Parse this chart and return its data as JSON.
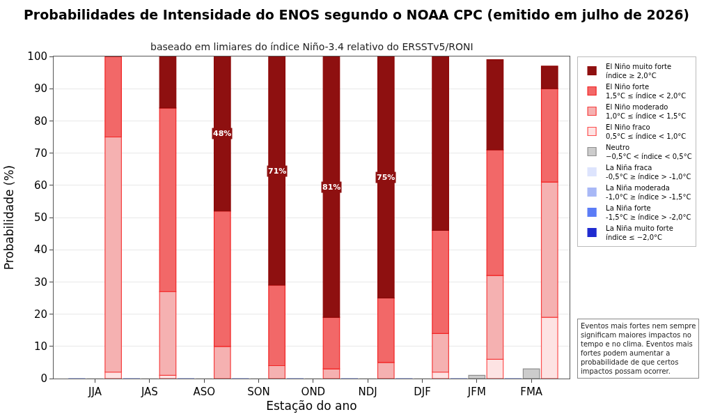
{
  "chart_data": {
    "type": "bar",
    "stacked": true,
    "title": "Probabilidades de Intensidade do ENOS segundo o NOAA CPC (emitido em julho de 2026)",
    "subtitle": "baseado em limiares do índice Niño-3.4 relativo do ERSSTv5/RONI",
    "xlabel": "Estação do ano",
    "ylabel": "Probabilidade (%)",
    "categories": [
      null,
      "JJA",
      null,
      null,
      "JAS",
      null,
      null,
      "ASO",
      null,
      null,
      "SON",
      null,
      null,
      "OND",
      null,
      null,
      "NDJ",
      null,
      null,
      "DJF",
      null,
      null,
      "JFM",
      null,
      null,
      "FMA",
      null
    ],
    "ylim": [
      0,
      100
    ],
    "yticks": [
      0,
      10,
      20,
      30,
      40,
      50,
      60,
      70,
      80,
      90,
      100
    ],
    "grid": "y",
    "legend": "right",
    "series": [
      {
        "name": "La Niña muito forte\níndice ≤ −2,0°C",
        "color": "#1f2bd0",
        "values": [
          0,
          null,
          null,
          0,
          null,
          null,
          0,
          null,
          null,
          0,
          null,
          null,
          0,
          null,
          null,
          0,
          null,
          null,
          0,
          null,
          null,
          0,
          null,
          null,
          0,
          null,
          null
        ]
      },
      {
        "name": "La Niña forte\n-1,5°C ≥ índice > -2,0°C",
        "color": "#5b7cf6",
        "values": [
          0,
          null,
          null,
          0,
          null,
          null,
          0,
          null,
          null,
          0,
          null,
          null,
          0,
          null,
          null,
          0,
          null,
          null,
          0,
          null,
          null,
          0,
          null,
          null,
          0,
          null,
          null
        ]
      },
      {
        "name": "La Niña moderada\n-1,0°C ≥ índice > -1,5°C",
        "color": "#a8b8f6",
        "values": [
          0,
          null,
          null,
          0,
          null,
          null,
          0,
          null,
          null,
          0,
          null,
          null,
          0,
          null,
          null,
          0,
          null,
          null,
          0,
          null,
          null,
          0,
          null,
          null,
          0,
          null,
          null
        ]
      },
      {
        "name": "La Niña fraca\n-0,5°C ≥ índice > -1,0°C",
        "color": "#dde4fd",
        "values": [
          0,
          null,
          null,
          0,
          null,
          null,
          0,
          null,
          null,
          0,
          null,
          null,
          0,
          null,
          null,
          0,
          null,
          null,
          0,
          null,
          null,
          0,
          null,
          null,
          0,
          null,
          null
        ]
      },
      {
        "name": "Neutro\n−0,5°C < índice < 0,5°C",
        "color": "#cccccc",
        "values": [
          null,
          0,
          null,
          null,
          0,
          null,
          null,
          0,
          null,
          null,
          0,
          null,
          null,
          0,
          null,
          null,
          0,
          null,
          null,
          0,
          null,
          null,
          1,
          null,
          null,
          3,
          null
        ]
      },
      {
        "name": "El Niño fraco\n0,5°C ≤ índice < 1,0°C",
        "color": "#fde3e3",
        "values": [
          null,
          null,
          2,
          null,
          null,
          1,
          null,
          null,
          0,
          null,
          null,
          0,
          null,
          null,
          0,
          null,
          null,
          0,
          null,
          null,
          2,
          null,
          null,
          6,
          null,
          null,
          19
        ]
      },
      {
        "name": "El Niño moderado\n1,0°C ≤ índice < 1,5°C",
        "color": "#f5b1b1",
        "values": [
          null,
          null,
          73,
          null,
          null,
          26,
          null,
          null,
          10,
          null,
          null,
          4,
          null,
          null,
          3,
          null,
          null,
          5,
          null,
          null,
          12,
          null,
          null,
          26,
          null,
          null,
          42
        ]
      },
      {
        "name": "El Niño forte\n1,5°C ≤ índice < 2,0°C",
        "color": "#f26868",
        "values": [
          null,
          null,
          25,
          null,
          null,
          57,
          null,
          null,
          42,
          null,
          null,
          25,
          null,
          null,
          16,
          null,
          null,
          20,
          null,
          null,
          32,
          null,
          null,
          39,
          null,
          null,
          29
        ]
      },
      {
        "name": "El Niño muito forte\níndice ≥ 2,0°C",
        "color": "#8e1010",
        "values": [
          null,
          null,
          0,
          null,
          null,
          16,
          null,
          null,
          48,
          null,
          null,
          71,
          null,
          null,
          81,
          null,
          null,
          75,
          null,
          null,
          54,
          null,
          null,
          28,
          null,
          null,
          7
        ],
        "value_labels": [
          null,
          null,
          null,
          null,
          null,
          null,
          null,
          null,
          "48%",
          null,
          null,
          "71%",
          null,
          null,
          "81%",
          null,
          null,
          "75%",
          null,
          null,
          null,
          null,
          null,
          null,
          null,
          null,
          null
        ]
      }
    ],
    "annotations": [
      "Eventos mais fortes nem sempre\nsignificam maiores impactos no\ntempo e no clima. Eventos mais\nfortes podem aumentar a\nprobabilidade de que certos\nimpactos possam ocorrer."
    ]
  }
}
